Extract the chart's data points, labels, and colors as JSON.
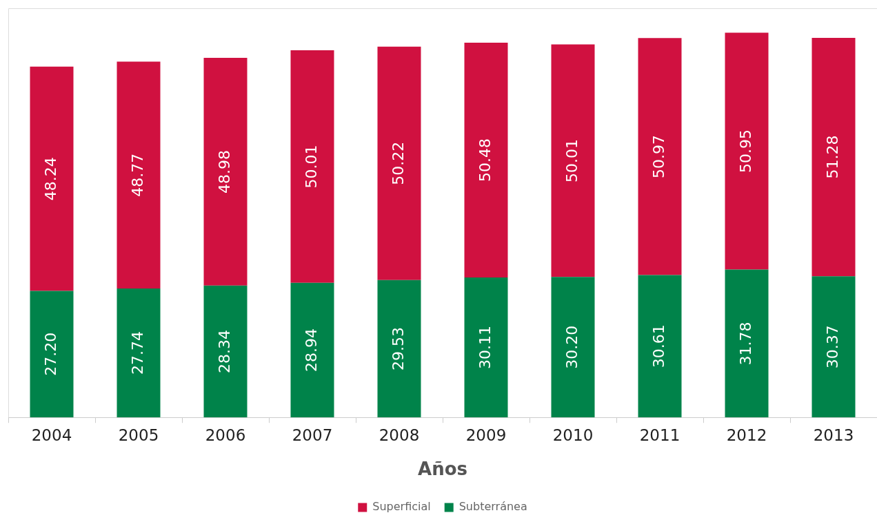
{
  "chart_data": {
    "type": "bar",
    "stacked": true,
    "xlabel": "Años",
    "categories": [
      "2004",
      "2005",
      "2006",
      "2007",
      "2008",
      "2009",
      "2010",
      "2011",
      "2012",
      "2013"
    ],
    "series": [
      {
        "name": "Subterránea",
        "color": "#00834a",
        "values": [
          27.2,
          27.74,
          28.34,
          28.94,
          29.53,
          30.11,
          30.2,
          30.61,
          31.78,
          30.37
        ],
        "value_labels": [
          "27.20",
          "27.74",
          "28.34",
          "28.94",
          "29.53",
          "30.11",
          "30.20",
          "30.61",
          "31.78",
          "30.37"
        ]
      },
      {
        "name": "Superficial",
        "color": "#d01140",
        "values": [
          48.24,
          48.77,
          48.98,
          50.01,
          50.22,
          50.48,
          50.01,
          50.97,
          50.95,
          51.28
        ],
        "value_labels": [
          "48.24",
          "48.77",
          "48.98",
          "50.01",
          "50.22",
          "50.48",
          "50.01",
          "50.97",
          "50.95",
          "51.28"
        ]
      }
    ],
    "ylim": [
      0,
      88
    ],
    "tick_labels": "x",
    "grid": false,
    "legend": "bottom"
  }
}
